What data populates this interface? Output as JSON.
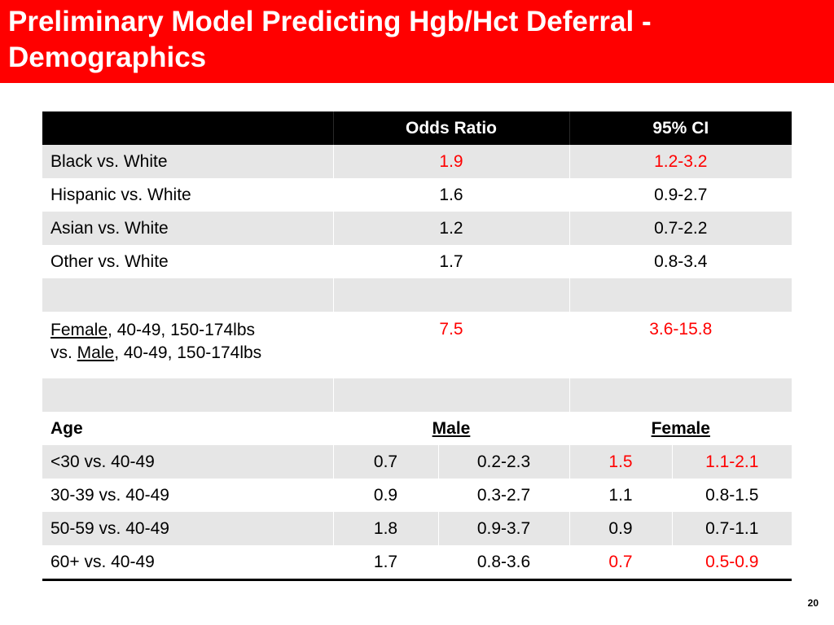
{
  "slide": {
    "title_line1": "Preliminary Model Predicting Hgb/Hct Deferral -",
    "title_line2": "Demographics",
    "page_number": "20",
    "accent_color": "#ff0000",
    "significant_color": "#ff0000"
  },
  "table": {
    "headers": {
      "label": "",
      "odds_ratio": "Odds Ratio",
      "ci": "95% CI"
    },
    "race_rows": [
      {
        "label": "Black vs. White",
        "or": "1.9",
        "ci": "1.2-3.2",
        "significant": true
      },
      {
        "label": "Hispanic vs. White",
        "or": "1.6",
        "ci": "0.9-2.7",
        "significant": false
      },
      {
        "label": "Asian vs. White",
        "or": "1.2",
        "ci": "0.7-2.2",
        "significant": false
      },
      {
        "label": "Other vs. White",
        "or": "1.7",
        "ci": "0.8-3.4",
        "significant": false
      }
    ],
    "sex_row": {
      "line1_underlined": "Female",
      "line1_rest": ", 40-49, 150-174lbs",
      "line2_prefix": "vs. ",
      "line2_underlined": "Male",
      "line2_rest": ", 40-49, 150-174lbs",
      "or": "7.5",
      "ci": "3.6-15.8",
      "significant": true
    },
    "age_header": {
      "label": "Age",
      "male": "Male",
      "female": "Female"
    },
    "age_rows": [
      {
        "label": "<30 vs. 40-49",
        "male_or": "0.7",
        "male_ci": "0.2-2.3",
        "female_or": "1.5",
        "female_ci": "1.1-2.1",
        "female_significant": true
      },
      {
        "label": "30-39 vs. 40-49",
        "male_or": "0.9",
        "male_ci": "0.3-2.7",
        "female_or": "1.1",
        "female_ci": "0.8-1.5",
        "female_significant": false
      },
      {
        "label": "50-59 vs. 40-49",
        "male_or": "1.8",
        "male_ci": "0.9-3.7",
        "female_or": "0.9",
        "female_ci": "0.7-1.1",
        "female_significant": false
      },
      {
        "label": "60+ vs. 40-49",
        "male_or": "1.7",
        "male_ci": "0.8-3.6",
        "female_or": "0.7",
        "female_ci": "0.5-0.9",
        "female_significant": true
      }
    ]
  }
}
